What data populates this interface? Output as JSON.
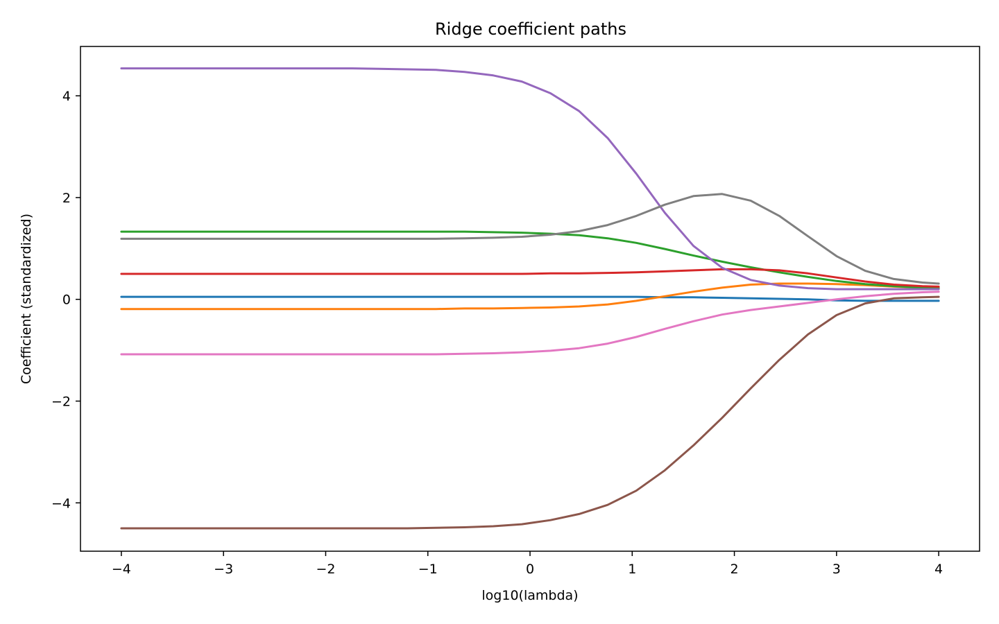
{
  "chart_data": {
    "type": "line",
    "title": "Ridge coefficient paths",
    "xlabel": "log10(lambda)",
    "ylabel": "Coefficient (standardized)",
    "xlim": [
      -4.4,
      4.4
    ],
    "ylim": [
      -4.95,
      4.97
    ],
    "xticks": [
      -4,
      -3,
      -2,
      -1,
      0,
      1,
      2,
      3,
      4
    ],
    "yticks": [
      -4,
      -2,
      0,
      2,
      4
    ],
    "grid": false,
    "legend": "none",
    "x": [
      -4,
      -3.72,
      -3.44,
      -3.16,
      -2.88,
      -2.6,
      -2.32,
      -2.04,
      -1.76,
      -1.48,
      -1.2,
      -0.92,
      -0.64,
      -0.36,
      -0.08,
      0.2,
      0.48,
      0.76,
      1.04,
      1.32,
      1.6,
      1.88,
      2.16,
      2.44,
      2.72,
      3.0,
      3.28,
      3.56,
      3.84,
      4.0
    ],
    "series": [
      {
        "color": "#1f77b4",
        "values": [
          0.05,
          0.05,
          0.05,
          0.05,
          0.05,
          0.05,
          0.05,
          0.05,
          0.05,
          0.05,
          0.05,
          0.05,
          0.05,
          0.05,
          0.05,
          0.05,
          0.05,
          0.05,
          0.05,
          0.04,
          0.04,
          0.03,
          0.02,
          0.01,
          0.0,
          -0.02,
          -0.03,
          -0.03,
          -0.03,
          -0.03
        ]
      },
      {
        "color": "#ff7f0e",
        "values": [
          -0.19,
          -0.19,
          -0.19,
          -0.19,
          -0.19,
          -0.19,
          -0.19,
          -0.19,
          -0.19,
          -0.19,
          -0.19,
          -0.19,
          -0.18,
          -0.18,
          -0.17,
          -0.16,
          -0.14,
          -0.1,
          -0.03,
          0.06,
          0.15,
          0.23,
          0.29,
          0.31,
          0.31,
          0.3,
          0.28,
          0.25,
          0.23,
          0.22
        ]
      },
      {
        "color": "#2ca02c",
        "values": [
          1.33,
          1.33,
          1.33,
          1.33,
          1.33,
          1.33,
          1.33,
          1.33,
          1.33,
          1.33,
          1.33,
          1.33,
          1.33,
          1.32,
          1.31,
          1.29,
          1.26,
          1.2,
          1.11,
          0.99,
          0.86,
          0.74,
          0.63,
          0.53,
          0.44,
          0.36,
          0.3,
          0.26,
          0.23,
          0.22
        ]
      },
      {
        "color": "#d62728",
        "values": [
          0.5,
          0.5,
          0.5,
          0.5,
          0.5,
          0.5,
          0.5,
          0.5,
          0.5,
          0.5,
          0.5,
          0.5,
          0.5,
          0.5,
          0.5,
          0.51,
          0.51,
          0.52,
          0.53,
          0.55,
          0.57,
          0.59,
          0.59,
          0.57,
          0.51,
          0.43,
          0.35,
          0.29,
          0.26,
          0.25
        ]
      },
      {
        "color": "#9467bd",
        "values": [
          4.54,
          4.54,
          4.54,
          4.54,
          4.54,
          4.54,
          4.54,
          4.54,
          4.54,
          4.53,
          4.52,
          4.51,
          4.47,
          4.4,
          4.28,
          4.05,
          3.7,
          3.17,
          2.47,
          1.7,
          1.05,
          0.62,
          0.38,
          0.27,
          0.22,
          0.2,
          0.2,
          0.2,
          0.2,
          0.2
        ]
      },
      {
        "color": "#8c564b",
        "values": [
          -4.5,
          -4.5,
          -4.5,
          -4.5,
          -4.5,
          -4.5,
          -4.5,
          -4.5,
          -4.5,
          -4.5,
          -4.5,
          -4.49,
          -4.48,
          -4.46,
          -4.42,
          -4.34,
          -4.22,
          -4.04,
          -3.76,
          -3.36,
          -2.87,
          -2.33,
          -1.75,
          -1.19,
          -0.69,
          -0.31,
          -0.08,
          0.02,
          0.04,
          0.05
        ]
      },
      {
        "color": "#e377c2",
        "values": [
          -1.08,
          -1.08,
          -1.08,
          -1.08,
          -1.08,
          -1.08,
          -1.08,
          -1.08,
          -1.08,
          -1.08,
          -1.08,
          -1.08,
          -1.07,
          -1.06,
          -1.04,
          -1.01,
          -0.96,
          -0.87,
          -0.74,
          -0.58,
          -0.43,
          -0.3,
          -0.21,
          -0.14,
          -0.07,
          0.0,
          0.06,
          0.11,
          0.14,
          0.15
        ]
      },
      {
        "color": "#7f7f7f",
        "values": [
          1.19,
          1.19,
          1.19,
          1.19,
          1.19,
          1.19,
          1.19,
          1.19,
          1.19,
          1.19,
          1.19,
          1.19,
          1.2,
          1.21,
          1.23,
          1.27,
          1.34,
          1.46,
          1.64,
          1.86,
          2.03,
          2.07,
          1.94,
          1.64,
          1.24,
          0.85,
          0.56,
          0.4,
          0.33,
          0.31
        ]
      }
    ]
  }
}
